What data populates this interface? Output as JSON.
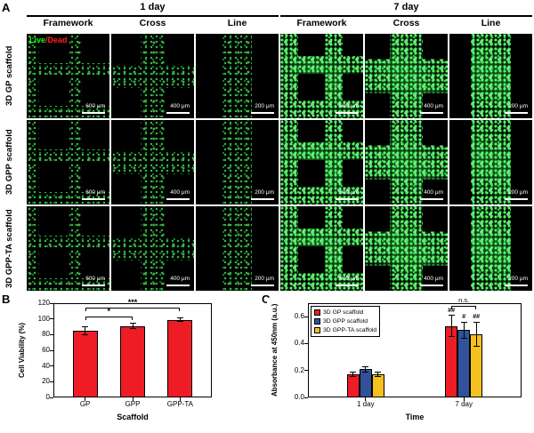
{
  "figure": {
    "panel_labels": {
      "a": "A",
      "b": "B",
      "c": "C"
    }
  },
  "panel_a": {
    "legend": {
      "live": "Live",
      "separator": "/",
      "dead": "Dead"
    },
    "groups": [
      {
        "label": "1 day"
      },
      {
        "label": "7 day"
      }
    ],
    "columns": [
      {
        "header": "Framework",
        "day": 1,
        "type": "framework",
        "scale": "600 μm"
      },
      {
        "header": "Cross",
        "day": 1,
        "type": "cross",
        "scale": "400 μm"
      },
      {
        "header": "Line",
        "day": 1,
        "type": "line",
        "scale": "200 μm"
      },
      {
        "header": "Framework",
        "day": 7,
        "type": "framework",
        "scale": "600 μm"
      },
      {
        "header": "Cross",
        "day": 7,
        "type": "cross",
        "scale": "400 μm"
      },
      {
        "header": "Line",
        "day": 7,
        "type": "line",
        "scale": "200 μm"
      }
    ],
    "rows": [
      {
        "label": "3D GP scaffold",
        "key": "gp"
      },
      {
        "label": "3D GPP scaffold",
        "key": "gpp"
      },
      {
        "label": "3D GPP-TA scaffold",
        "key": "gpp-ta"
      }
    ]
  },
  "chart_data": [
    {
      "id": "b",
      "type": "bar",
      "title": "",
      "categories": [
        "GP",
        "GPP",
        "GPP-TA"
      ],
      "values": [
        85,
        91,
        99
      ],
      "errors": [
        5,
        3,
        2
      ],
      "bar_color": "#ee1c25",
      "xlabel": "Scaffold",
      "ylabel": "Cell Viability (%)",
      "ylim": [
        0,
        120
      ],
      "yticks": [
        0,
        20,
        40,
        60,
        80,
        100,
        120
      ],
      "significance": [
        {
          "from": 0,
          "to": 1,
          "label": "*",
          "y": 103
        },
        {
          "from": 0,
          "to": 2,
          "label": "***",
          "y": 114
        }
      ]
    },
    {
      "id": "c",
      "type": "grouped-bar",
      "categories": [
        "1 day",
        "7 day"
      ],
      "series": [
        {
          "name": "3D GP scaffold",
          "color": "#ee1c25",
          "values": [
            0.17,
            0.53
          ],
          "errors": [
            0.015,
            0.08
          ]
        },
        {
          "name": "3D GPP scaffold",
          "color": "#31519b",
          "values": [
            0.21,
            0.5
          ],
          "errors": [
            0.02,
            0.06
          ]
        },
        {
          "name": "3D GPP-TA scaffold",
          "color": "#f5c11e",
          "values": [
            0.17,
            0.47
          ],
          "errors": [
            0.015,
            0.09
          ]
        }
      ],
      "xlabel": "Time",
      "ylabel": "Absorbance at 450nm (a.u.)",
      "ylim": [
        0,
        0.7
      ],
      "yticks": [
        0,
        0.2,
        0.4,
        0.6
      ],
      "ytick_labels": [
        "0.0",
        "0.2",
        "0.4",
        "0.6"
      ],
      "annotations": [
        {
          "category": 1,
          "series": 0,
          "label": "##"
        },
        {
          "category": 1,
          "series": 1,
          "label": "#"
        },
        {
          "category": 1,
          "series": 2,
          "label": "##"
        }
      ],
      "ns_bracket": {
        "category": 1,
        "label": "n.s.",
        "y": 0.68
      },
      "legend_position": "top-left"
    }
  ]
}
